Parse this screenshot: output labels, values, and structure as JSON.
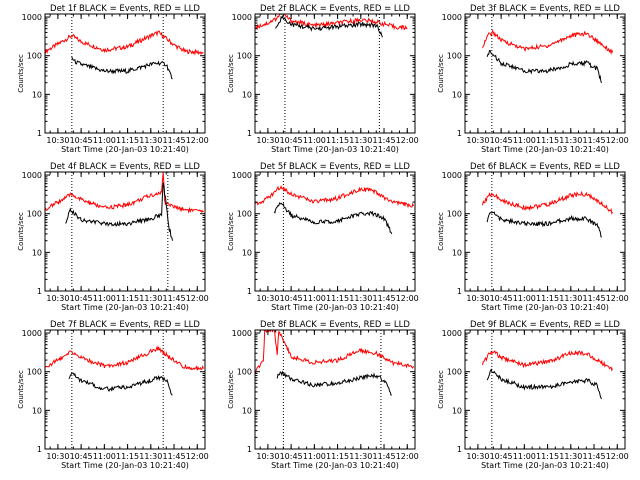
{
  "chart_data": [
    {
      "type": "line",
      "title": "Det 1f BLACK = Events, RED = LLD",
      "xlabel": "Start Time (20-Jan-03 10:21:40)",
      "ylabel": "Counts/sec",
      "xticks": [
        "10:30",
        "10:45",
        "11:00",
        "11:15",
        "11:30",
        "11:45",
        "12:00"
      ],
      "yticks": [
        "1",
        "10",
        "100",
        "1000"
      ],
      "ylim": [
        1,
        1200
      ],
      "yscale": "log",
      "xlim": [
        "10:21:40",
        "12:05"
      ],
      "vlines": [
        "10:39",
        "11:38"
      ],
      "series": [
        {
          "color": "#ff0000",
          "x": [
            "10:22",
            "10:30",
            "10:39",
            "10:45",
            "11:00",
            "11:15",
            "11:30",
            "11:35",
            "11:45",
            "11:52",
            "12:04"
          ],
          "y": [
            130,
            200,
            330,
            230,
            140,
            170,
            330,
            400,
            190,
            130,
            120
          ]
        },
        {
          "color": "#000000",
          "x": [
            "10:39",
            "10:41",
            "10:45",
            "11:00",
            "11:15",
            "11:30",
            "11:35",
            "11:40",
            "11:44"
          ],
          "y": [
            90,
            70,
            60,
            40,
            40,
            60,
            65,
            60,
            25
          ]
        }
      ]
    },
    {
      "type": "line",
      "title": "Det 2f BLACK = Events, RED = LLD",
      "xlabel": "Start Time (20-Jan-03 10:21:40)",
      "ylabel": "Counts/sec",
      "xticks": [
        "10:30",
        "10:45",
        "11:00",
        "11:15",
        "11:30",
        "11:45",
        "12:00"
      ],
      "yticks": [
        "1",
        "10",
        "100",
        "1000"
      ],
      "ylim": [
        1,
        1200
      ],
      "yscale": "log",
      "xlim": [
        "10:21:40",
        "12:05"
      ],
      "vlines": [
        "10:41",
        "11:42"
      ],
      "series": [
        {
          "color": "#ff0000",
          "x": [
            "10:22",
            "10:30",
            "10:35",
            "10:39",
            "10:45",
            "11:00",
            "11:15",
            "11:30",
            "11:40",
            "11:52",
            "12:00"
          ],
          "y": [
            550,
            700,
            900,
            1300,
            800,
            600,
            700,
            850,
            750,
            550,
            520
          ]
        },
        {
          "color": "#000000",
          "x": [
            "10:35",
            "10:39",
            "10:45",
            "11:00",
            "11:15",
            "11:30",
            "11:40",
            "11:44"
          ],
          "y": [
            550,
            1000,
            650,
            500,
            560,
            650,
            620,
            300
          ]
        }
      ]
    },
    {
      "type": "line",
      "title": "Det 3f BLACK = Events, RED = LLD",
      "xlabel": "Start Time (20-Jan-03 10:21:40)",
      "ylabel": "Counts/sec",
      "xticks": [
        "10:30",
        "10:45",
        "11:00",
        "11:15",
        "11:30",
        "11:45",
        "12:00"
      ],
      "yticks": [
        "1",
        "10",
        "100",
        "1000"
      ],
      "ylim": [
        1,
        1200
      ],
      "yscale": "log",
      "xlim": [
        "10:21:40",
        "12:05"
      ],
      "vlines": [
        "10:39"
      ],
      "series": [
        {
          "color": "#ff0000",
          "x": [
            "10:33",
            "10:37",
            "10:40",
            "10:45",
            "11:00",
            "11:15",
            "11:30",
            "11:40",
            "11:50",
            "11:57"
          ],
          "y": [
            180,
            350,
            400,
            250,
            150,
            180,
            330,
            380,
            200,
            120
          ]
        },
        {
          "color": "#000000",
          "x": [
            "10:36",
            "10:38",
            "10:45",
            "11:00",
            "11:15",
            "11:30",
            "11:40",
            "11:47",
            "11:50"
          ],
          "y": [
            100,
            130,
            65,
            40,
            40,
            60,
            65,
            45,
            20
          ]
        }
      ]
    },
    {
      "type": "line",
      "title": "Det 4f BLACK = Events, RED = LLD",
      "xlabel": "Start Time (20-Jan-03 10:21:40)",
      "ylabel": "Counts/sec",
      "xticks": [
        "10:30",
        "10:45",
        "11:00",
        "11:15",
        "11:30",
        "11:45",
        "12:00"
      ],
      "yticks": [
        "1",
        "10",
        "100",
        "1000"
      ],
      "ylim": [
        1,
        1200
      ],
      "yscale": "log",
      "xlim": [
        "10:21:40",
        "12:05"
      ],
      "vlines": [
        "10:39",
        "11:41"
      ],
      "series": [
        {
          "color": "#ff0000",
          "x": [
            "10:22",
            "10:30",
            "10:39",
            "10:45",
            "11:00",
            "11:15",
            "11:30",
            "11:37",
            "11:38",
            "11:39",
            "11:45",
            "11:52",
            "12:04"
          ],
          "y": [
            130,
            200,
            320,
            230,
            140,
            170,
            300,
            350,
            1200,
            200,
            150,
            130,
            110
          ]
        },
        {
          "color": "#000000",
          "x": [
            "10:35",
            "10:38",
            "10:45",
            "11:00",
            "11:15",
            "11:30",
            "11:37",
            "11:38",
            "11:42",
            "11:44"
          ],
          "y": [
            60,
            130,
            70,
            55,
            55,
            75,
            95,
            700,
            40,
            20
          ]
        }
      ]
    },
    {
      "type": "line",
      "title": "Det 5f BLACK = Events, RED = LLD",
      "xlabel": "Start Time (20-Jan-03 10:21:40)",
      "ylabel": "Counts/sec",
      "xticks": [
        "10:30",
        "10:45",
        "11:00",
        "11:15",
        "11:30",
        "11:45",
        "12:00"
      ],
      "yticks": [
        "1",
        "10",
        "100",
        "1000"
      ],
      "ylim": [
        1,
        1200
      ],
      "yscale": "log",
      "xlim": [
        "10:21:40",
        "12:05"
      ],
      "vlines": [
        "10:40"
      ],
      "series": [
        {
          "color": "#ff0000",
          "x": [
            "10:22",
            "10:30",
            "10:38",
            "10:45",
            "11:00",
            "11:15",
            "11:30",
            "11:38",
            "11:50",
            "12:04"
          ],
          "y": [
            180,
            250,
            500,
            330,
            200,
            250,
            450,
            380,
            200,
            160
          ]
        },
        {
          "color": "#000000",
          "x": [
            "10:34",
            "10:38",
            "10:45",
            "11:00",
            "11:15",
            "11:30",
            "11:38",
            "11:45",
            "11:50"
          ],
          "y": [
            100,
            200,
            90,
            60,
            65,
            100,
            100,
            75,
            30
          ]
        }
      ]
    },
    {
      "type": "line",
      "title": "Det 6f BLACK = Events, RED = LLD",
      "xlabel": "Start Time (20-Jan-03 10:21:40)",
      "ylabel": "Counts/sec",
      "xticks": [
        "10:30",
        "10:45",
        "11:00",
        "11:15",
        "11:30",
        "11:45",
        "12:00"
      ],
      "yticks": [
        "1",
        "10",
        "100",
        "1000"
      ],
      "ylim": [
        1,
        1200
      ],
      "yscale": "log",
      "xlim": [
        "10:21:40",
        "12:05"
      ],
      "vlines": [
        "10:39"
      ],
      "series": [
        {
          "color": "#ff0000",
          "x": [
            "10:33",
            "10:37",
            "10:40",
            "10:45",
            "11:00",
            "11:15",
            "11:30",
            "11:40",
            "11:50",
            "11:57"
          ],
          "y": [
            180,
            300,
            320,
            220,
            140,
            170,
            300,
            320,
            180,
            110
          ]
        },
        {
          "color": "#000000",
          "x": [
            "10:36",
            "10:38",
            "10:45",
            "11:00",
            "11:15",
            "11:30",
            "11:40",
            "11:47",
            "11:50"
          ],
          "y": [
            60,
            120,
            70,
            55,
            55,
            75,
            75,
            50,
            25
          ]
        }
      ]
    },
    {
      "type": "line",
      "title": "Det 7f BLACK = Events, RED = LLD",
      "xlabel": "Start Time (20-Jan-03 10:21:40)",
      "ylabel": "Counts/sec",
      "xticks": [
        "10:30",
        "10:45",
        "11:00",
        "11:15",
        "11:30",
        "11:45",
        "12:00"
      ],
      "yticks": [
        "1",
        "10",
        "100",
        "1000"
      ],
      "ylim": [
        1,
        1200
      ],
      "yscale": "log",
      "xlim": [
        "10:21:40",
        "12:05"
      ],
      "vlines": [
        "10:39",
        "11:38"
      ],
      "series": [
        {
          "color": "#ff0000",
          "x": [
            "10:22",
            "10:30",
            "10:39",
            "10:45",
            "11:00",
            "11:15",
            "11:30",
            "11:35",
            "11:45",
            "11:52",
            "12:04"
          ],
          "y": [
            130,
            200,
            330,
            230,
            140,
            170,
            330,
            400,
            190,
            130,
            120
          ]
        },
        {
          "color": "#000000",
          "x": [
            "10:37",
            "10:39",
            "10:45",
            "11:00",
            "11:15",
            "11:30",
            "11:35",
            "11:40",
            "11:44"
          ],
          "y": [
            60,
            90,
            60,
            35,
            40,
            60,
            70,
            60,
            25
          ]
        }
      ]
    },
    {
      "type": "line",
      "title": "Det 8f BLACK = Events, RED = LLD",
      "xlabel": "Start Time (20-Jan-03 10:21:40)",
      "ylabel": "Counts/sec",
      "xticks": [
        "10:30",
        "10:45",
        "11:00",
        "11:15",
        "11:30",
        "11:45",
        "12:00"
      ],
      "yticks": [
        "1",
        "10",
        "100",
        "1000"
      ],
      "ylim": [
        1,
        1200
      ],
      "yscale": "log",
      "xlim": [
        "10:21:40",
        "12:05"
      ],
      "vlines": [
        "10:40",
        "11:43"
      ],
      "series": [
        {
          "color": "#ff0000",
          "x": [
            "10:22",
            "10:27",
            "10:28",
            "10:32",
            "10:34",
            "10:36",
            "10:37",
            "10:45",
            "11:00",
            "11:15",
            "11:30",
            "11:40",
            "11:50",
            "12:04"
          ],
          "y": [
            100,
            180,
            1200,
            1200,
            1200,
            300,
            1200,
            250,
            170,
            200,
            360,
            300,
            170,
            140
          ]
        },
        {
          "color": "#000000",
          "x": [
            "10:36",
            "10:38",
            "10:45",
            "11:00",
            "11:15",
            "11:30",
            "11:40",
            "11:46",
            "11:50"
          ],
          "y": [
            70,
            100,
            65,
            45,
            50,
            70,
            80,
            55,
            25
          ]
        }
      ]
    },
    {
      "type": "line",
      "title": "Det 9f BLACK = Events, RED = LLD",
      "xlabel": "Start Time (20-Jan-03 10:21:40)",
      "ylabel": "Counts/sec",
      "xticks": [
        "10:30",
        "10:45",
        "11:00",
        "11:15",
        "11:30",
        "11:45",
        "12:00"
      ],
      "yticks": [
        "1",
        "10",
        "100",
        "1000"
      ],
      "ylim": [
        1,
        1200
      ],
      "yscale": "log",
      "xlim": [
        "10:21:40",
        "12:05"
      ],
      "vlines": [
        "10:39"
      ],
      "series": [
        {
          "color": "#ff0000",
          "x": [
            "10:33",
            "10:37",
            "10:40",
            "10:45",
            "11:00",
            "11:15",
            "11:30",
            "11:40",
            "11:50",
            "11:57"
          ],
          "y": [
            150,
            280,
            330,
            230,
            150,
            180,
            300,
            300,
            170,
            120
          ]
        },
        {
          "color": "#000000",
          "x": [
            "10:36",
            "10:38",
            "10:45",
            "11:00",
            "11:15",
            "11:30",
            "11:40",
            "11:47",
            "11:50"
          ],
          "y": [
            60,
            110,
            65,
            40,
            40,
            55,
            60,
            45,
            20
          ]
        }
      ]
    }
  ]
}
